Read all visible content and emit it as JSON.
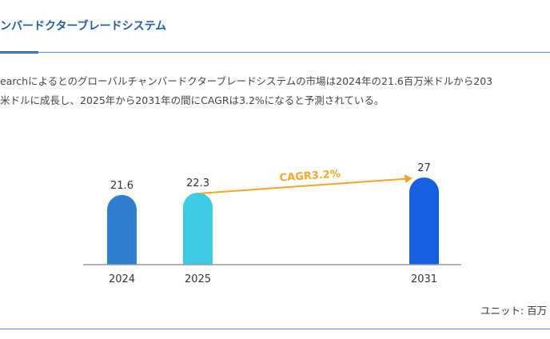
{
  "header": {
    "title": "ンバードクターブレードシステム"
  },
  "description": {
    "line1": "earchによるとのグローバルチャンバードクターブレードシステムの市場は2024年の21.6百万米ドルから203",
    "line2": "米ドルに成長し、2025年から2031年の間にCAGRは3.2%になると予測されている。"
  },
  "unit": "ユニット: 百万",
  "chart_data": {
    "type": "bar",
    "categories": [
      "2024",
      "2025",
      "2031"
    ],
    "values": [
      21.6,
      22.3,
      27
    ],
    "value_labels": [
      "21.6",
      "22.3",
      "27"
    ],
    "colors": [
      "#2f7fd0",
      "#3ecbe6",
      "#1660e0"
    ],
    "annotation": "CAGR3.2%",
    "annotation_color": "#f5a623",
    "ylim": [
      0,
      27
    ]
  }
}
